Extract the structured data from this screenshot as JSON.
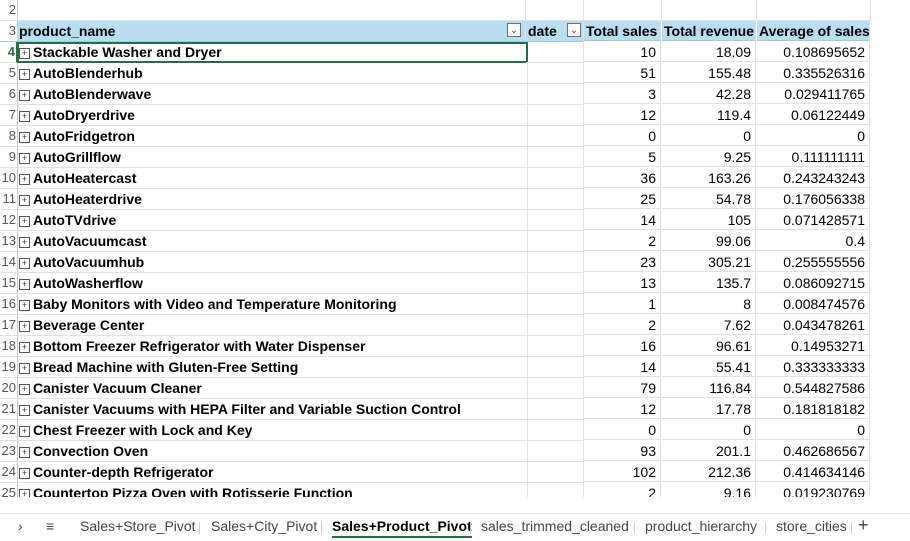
{
  "sheet": {
    "columns": [
      "product_name",
      "date",
      "Total sales",
      "Total revenue",
      "Average of sales"
    ],
    "header_row_number": "3",
    "first_row_number": "2",
    "rows": [
      {
        "n": "4",
        "name": "Stackable Washer and Dryer",
        "sales": "10",
        "revenue": "18.09",
        "avg": "0.108695652"
      },
      {
        "n": "5",
        "name": "AutoBlenderhub",
        "sales": "51",
        "revenue": "155.48",
        "avg": "0.335526316"
      },
      {
        "n": "6",
        "name": "AutoBlenderwave",
        "sales": "3",
        "revenue": "42.28",
        "avg": "0.029411765"
      },
      {
        "n": "7",
        "name": "AutoDryerdrive",
        "sales": "12",
        "revenue": "119.4",
        "avg": "0.06122449"
      },
      {
        "n": "8",
        "name": "AutoFridgetron",
        "sales": "0",
        "revenue": "0",
        "avg": "0"
      },
      {
        "n": "9",
        "name": "AutoGrillflow",
        "sales": "5",
        "revenue": "9.25",
        "avg": "0.111111111"
      },
      {
        "n": "10",
        "name": "AutoHeatercast",
        "sales": "36",
        "revenue": "163.26",
        "avg": "0.243243243"
      },
      {
        "n": "11",
        "name": "AutoHeaterdrive",
        "sales": "25",
        "revenue": "54.78",
        "avg": "0.176056338"
      },
      {
        "n": "12",
        "name": "AutoTVdrive",
        "sales": "14",
        "revenue": "105",
        "avg": "0.071428571"
      },
      {
        "n": "13",
        "name": "AutoVacuumcast",
        "sales": "2",
        "revenue": "99.06",
        "avg": "0.4"
      },
      {
        "n": "14",
        "name": "AutoVacuumhub",
        "sales": "23",
        "revenue": "305.21",
        "avg": "0.255555556"
      },
      {
        "n": "15",
        "name": "AutoWasherflow",
        "sales": "13",
        "revenue": "135.7",
        "avg": "0.086092715"
      },
      {
        "n": "16",
        "name": "Baby Monitors with Video and Temperature Monitoring",
        "sales": "1",
        "revenue": "8",
        "avg": "0.008474576"
      },
      {
        "n": "17",
        "name": "Beverage Center",
        "sales": "2",
        "revenue": "7.62",
        "avg": "0.043478261"
      },
      {
        "n": "18",
        "name": "Bottom Freezer Refrigerator with Water Dispenser",
        "sales": "16",
        "revenue": "96.61",
        "avg": "0.14953271"
      },
      {
        "n": "19",
        "name": "Bread Machine with Gluten-Free Setting",
        "sales": "14",
        "revenue": "55.41",
        "avg": "0.333333333"
      },
      {
        "n": "20",
        "name": "Canister Vacuum Cleaner",
        "sales": "79",
        "revenue": "116.84",
        "avg": "0.544827586"
      },
      {
        "n": "21",
        "name": "Canister Vacuums with HEPA Filter and Variable Suction Control",
        "sales": "12",
        "revenue": "17.78",
        "avg": "0.181818182"
      },
      {
        "n": "22",
        "name": "Chest Freezer with Lock and Key",
        "sales": "0",
        "revenue": "0",
        "avg": "0"
      },
      {
        "n": "23",
        "name": "Convection Oven",
        "sales": "93",
        "revenue": "201.1",
        "avg": "0.462686567"
      },
      {
        "n": "24",
        "name": "Counter-depth Refrigerator",
        "sales": "102",
        "revenue": "212.36",
        "avg": "0.414634146"
      },
      {
        "n": "25",
        "name": "Countertop Pizza Oven with Rotisserie Function",
        "sales": "2",
        "revenue": "9.16",
        "avg": "0.019230769"
      }
    ]
  },
  "tabs": {
    "items": [
      "Sales+Store_Pivot",
      "Sales+City_Pivot",
      "Sales+Product_Pivot",
      "sales_trimmed_cleaned",
      "product_hierarchy",
      "store_cities"
    ],
    "active": "Sales+Product_Pivot",
    "nav_icon": "chevron-right-icon",
    "menu_icon": "hamburger-icon",
    "add_icon": "plus-icon"
  },
  "colors": {
    "header_fill": "#b7dff0",
    "selection": "#1e7145"
  }
}
